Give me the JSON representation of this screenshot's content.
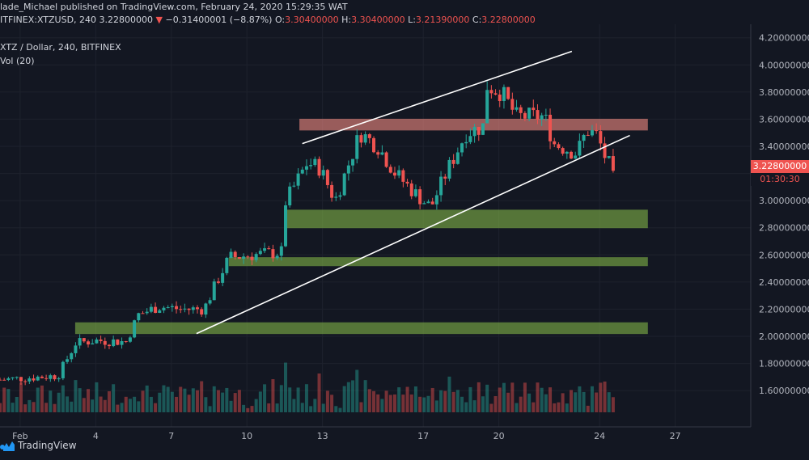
{
  "header": {
    "publisher": "lade_Michael published on TradingView.com, February 24, 2020 15:29:35 WAT",
    "symbol": "ITFINEX:XTZUSD, 240",
    "price": "3.22800000",
    "change": "−0.31400001 (−8.87%)",
    "o_label": "O:",
    "o_value": "3.30400000",
    "h_label": "H:",
    "h_value": "3.30400000",
    "l_label": "L:",
    "l_value": "3.21390000",
    "c_label": "C:",
    "c_value": "3.22800000"
  },
  "legend": {
    "series": "XTZ / Dollar, 240, BITFINEX",
    "volume": "Vol (20)"
  },
  "badge": {
    "price": "3.22800000",
    "countdown": "01:30:30"
  },
  "footer": {
    "brand": "TradingView"
  },
  "colors": {
    "up": "#26a69a",
    "down": "#ef5350",
    "support_zone": "#8bc34a",
    "resistance_zone": "#f28b82",
    "trendline": "#ffffff"
  },
  "chart_data": {
    "type": "candlestick",
    "ylim": [
      1.44,
      4.24
    ],
    "y_ticks": [
      "4.20000000",
      "4.00000000",
      "3.80000000",
      "3.60000000",
      "3.40000000",
      "3.20000000",
      "3.00000000",
      "2.80000000",
      "2.60000000",
      "2.40000000",
      "2.20000000",
      "2.00000000",
      "1.80000000",
      "1.60000000"
    ],
    "x_ticks": [
      {
        "label": "Feb",
        "day": 1
      },
      {
        "label": "4",
        "day": 4
      },
      {
        "label": "7",
        "day": 7
      },
      {
        "label": "10",
        "day": 10
      },
      {
        "label": "13",
        "day": 13
      },
      {
        "label": "17",
        "day": 17
      },
      {
        "label": "20",
        "day": 20
      },
      {
        "label": "24",
        "day": 24
      },
      {
        "label": "27",
        "day": 27
      }
    ],
    "xlim": [
      0.2,
      30.0
    ],
    "anchors": [
      [
        0.2,
        1.68
      ],
      [
        2.5,
        1.71
      ],
      [
        3.2,
        1.95
      ],
      [
        4.0,
        1.97
      ],
      [
        5.2,
        1.96
      ],
      [
        5.7,
        2.16
      ],
      [
        6.5,
        2.22
      ],
      [
        7.4,
        2.2
      ],
      [
        8.3,
        2.2
      ],
      [
        8.8,
        2.4
      ],
      [
        9.3,
        2.58
      ],
      [
        10.2,
        2.6
      ],
      [
        11.4,
        2.62
      ],
      [
        11.5,
        2.98
      ],
      [
        12.4,
        3.28
      ],
      [
        12.9,
        3.24
      ],
      [
        13.5,
        3.0
      ],
      [
        14.5,
        3.5
      ],
      [
        15.2,
        3.4
      ],
      [
        15.9,
        3.2
      ],
      [
        16.7,
        3.05
      ],
      [
        17.3,
        2.95
      ],
      [
        17.9,
        3.2
      ],
      [
        18.7,
        3.5
      ],
      [
        19.4,
        3.55
      ],
      [
        19.5,
        3.85
      ],
      [
        20.1,
        3.8
      ],
      [
        20.7,
        3.62
      ],
      [
        21.8,
        3.62
      ],
      [
        22.2,
        3.42
      ],
      [
        23.1,
        3.35
      ],
      [
        23.5,
        3.52
      ],
      [
        23.9,
        3.48
      ],
      [
        24.3,
        3.28
      ],
      [
        24.6,
        3.22
      ]
    ],
    "support_zones": [
      [
        2.8,
        2.93
      ],
      [
        2.52,
        2.58
      ],
      [
        2.02,
        2.1
      ]
    ],
    "resistance_zones": [
      [
        3.52,
        3.6
      ]
    ],
    "trendlines": [
      {
        "x1": 8.0,
        "y1": 2.02,
        "x2": 25.2,
        "y2": 3.48
      },
      {
        "x1": 12.2,
        "y1": 3.42,
        "x2": 22.9,
        "y2": 4.1
      }
    ]
  }
}
